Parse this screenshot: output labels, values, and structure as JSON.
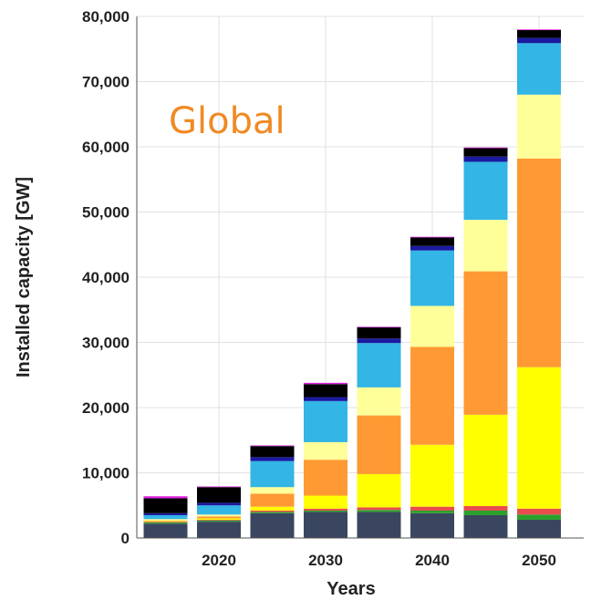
{
  "chart_data": {
    "type": "bar",
    "stacked": true,
    "annotation": "Global",
    "xlabel": "Years",
    "ylabel": "Installed capacity [GW]",
    "ylim": [
      0,
      80000
    ],
    "yticks": [
      "0",
      "10,000",
      "20,000",
      "30,000",
      "40,000",
      "50,000",
      "60,000",
      "70,000",
      "80,000"
    ],
    "xticks": [
      "2020",
      "2030",
      "2040",
      "2050"
    ],
    "grid": true,
    "x": [
      2015,
      2020,
      2025,
      2030,
      2035,
      2040,
      2045,
      2050
    ],
    "series": [
      {
        "color": "#3a4660",
        "values": [
          2200,
          2500,
          3800,
          4000,
          4000,
          3800,
          3500,
          2800
        ]
      },
      {
        "color": "#2ca02c",
        "values": [
          200,
          200,
          200,
          200,
          300,
          400,
          700,
          800
        ]
      },
      {
        "color": "#e84d4d",
        "values": [
          100,
          100,
          200,
          300,
          400,
          600,
          700,
          900
        ]
      },
      {
        "color": "#ffff00",
        "values": [
          100,
          200,
          600,
          2000,
          5100,
          9500,
          14000,
          21700
        ]
      },
      {
        "color": "#ff9933",
        "values": [
          100,
          300,
          2000,
          5500,
          9000,
          15000,
          22000,
          32000
        ]
      },
      {
        "color": "#ffff99",
        "values": [
          200,
          300,
          1000,
          2700,
          4300,
          6300,
          7900,
          9800
        ]
      },
      {
        "color": "#33b5e5",
        "values": [
          600,
          1400,
          4000,
          6300,
          6800,
          8500,
          8900,
          7900
        ]
      },
      {
        "color": "#1a1aa0",
        "values": [
          300,
          400,
          600,
          600,
          700,
          700,
          800,
          800
        ]
      },
      {
        "color": "#000000",
        "values": [
          2300,
          2400,
          1700,
          2000,
          1700,
          1300,
          1300,
          1200
        ]
      },
      {
        "color": "#e020e0",
        "values": [
          300,
          100,
          100,
          200,
          100,
          100,
          100,
          100
        ]
      }
    ]
  }
}
